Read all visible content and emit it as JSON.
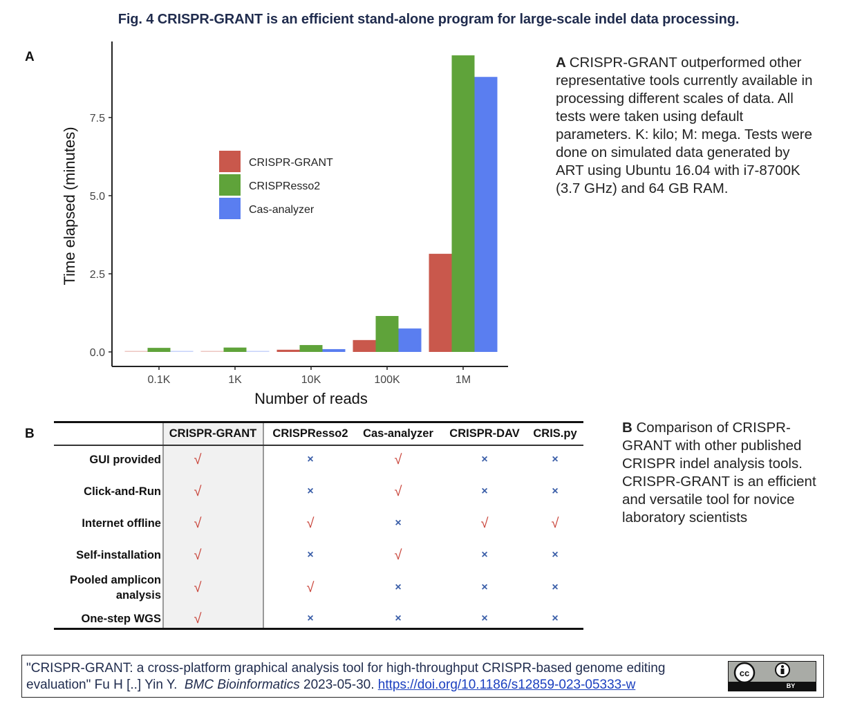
{
  "figure": {
    "title": "Fig. 4 CRISPR-GRANT is an efficient stand-alone program for large-scale indel data processing."
  },
  "panel_a": {
    "letter": "A",
    "caption_lead": "A",
    "caption": "CRISPR-GRANT outperformed other representative tools currently available in processing different scales of data. All tests were taken using default parameters. K: kilo; M: mega. Tests were done on simulated data generated by ART using Ubuntu 16.04 with i7-8700K (3.7 GHz) and 64 GB RAM.",
    "caption_lines": [
      "CRISPR-GRANT outperformed other",
      "representative tools currently available in",
      "processing different scales of data. All",
      "tests were taken using default",
      "parameters. K: kilo; M: mega. Tests were",
      "done on simulated data generated by",
      "ART using Ubuntu 16.04 with i7-8700K",
      "(3.7 GHz) and 64 GB RAM."
    ]
  },
  "chart_data": {
    "type": "bar",
    "title": "",
    "xlabel": "Number of reads",
    "ylabel": "Time elapsed (minutes)",
    "categories": [
      "0.1K",
      "1K",
      "10K",
      "100K",
      "1M"
    ],
    "series": [
      {
        "name": "CRISPR-GRANT",
        "color": "#c9584c",
        "values": [
          0.01,
          0.01,
          0.07,
          0.38,
          3.14
        ]
      },
      {
        "name": "CRISPResso2",
        "color": "#5fa33a",
        "values": [
          0.13,
          0.14,
          0.22,
          1.15,
          9.49
        ]
      },
      {
        "name": "Cas-analyzer",
        "color": "#5a7ef0",
        "values": [
          0.01,
          0.02,
          0.09,
          0.75,
          8.8
        ]
      }
    ],
    "yticks": [
      "0.0",
      "2.5",
      "5.0",
      "7.5"
    ],
    "ylim": [
      0,
      9.9
    ],
    "grid": false,
    "legend_position": "inside-upper-left"
  },
  "panel_b": {
    "letter": "B",
    "caption_lead": "B",
    "caption_lines": [
      "Comparison of CRISPR-",
      "GRANT with other published",
      "CRISPR indel analysis tools.",
      "CRISPR-GRANT is an efficient",
      "and versatile tool for novice",
      "laboratory scientists"
    ],
    "table": {
      "columns": [
        "CRISPR-GRANT",
        "CRISPResso2",
        "Cas-analyzer",
        "CRISPR-DAV",
        "CRIS.py"
      ],
      "rows": [
        {
          "label": "GUI provided",
          "values": [
            "check",
            "cross",
            "check",
            "cross",
            "cross"
          ]
        },
        {
          "label": "Click-and-Run",
          "values": [
            "check",
            "cross",
            "check",
            "cross",
            "cross"
          ]
        },
        {
          "label": "Internet offline",
          "values": [
            "check",
            "check",
            "cross",
            "check",
            "check"
          ]
        },
        {
          "label": "Self-installation",
          "values": [
            "check",
            "cross",
            "check",
            "cross",
            "cross"
          ]
        },
        {
          "label": "Pooled amplicon analysis",
          "values": [
            "check",
            "check",
            "cross",
            "cross",
            "cross"
          ]
        },
        {
          "label": "One-step WGS",
          "values": [
            "check",
            "cross",
            "cross",
            "cross",
            "cross"
          ]
        }
      ],
      "symbols": {
        "check": "√",
        "cross": "×"
      }
    }
  },
  "citation": {
    "quote": "\"CRISPR-GRANT: a cross-platform graphical analysis tool for high-throughput CRISPR-based genome editing evaluation\" Fu H [..] Yin Y.",
    "line1": "\"CRISPR-GRANT: a cross-platform graphical analysis tool for high-throughput CRISPR-based genome editing",
    "line2_pre": "evaluation\" Fu H [..] Yin Y.",
    "journal": "BMC Bioinformatics",
    "date": "2023-05-30.",
    "doi": "https://doi.org/10.1186/s12859-023-05333-w",
    "license_badge": "BY",
    "license_icon": "cc-by-icon"
  }
}
